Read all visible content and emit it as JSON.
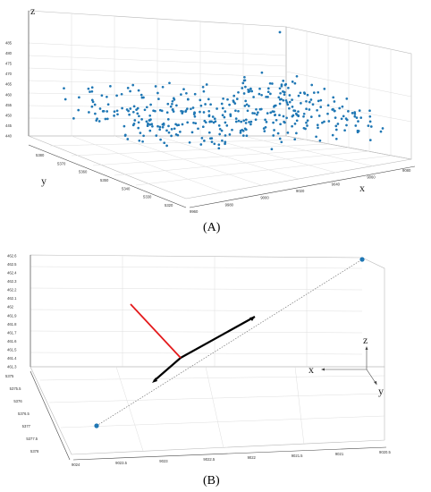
{
  "panels": {
    "a_label": "(A)",
    "b_label": "(B)"
  },
  "chart_data": [
    {
      "type": "scatter",
      "panel": "(A)",
      "xlabel": "x",
      "ylabel": "y",
      "zlabel": "z",
      "x_ticks": [
        "9960",
        "9980",
        "9000",
        "9020",
        "9040",
        "9060",
        "9080"
      ],
      "y_ticks": [
        "5320",
        "5330",
        "5340",
        "5350",
        "5360",
        "5370",
        "5380"
      ],
      "z_ticks": [
        "440",
        "445",
        "450",
        "455",
        "460",
        "465",
        "470",
        "475",
        "480",
        "485"
      ],
      "zlim": [
        440,
        485
      ],
      "marker_color": "#1f77b4",
      "grid": true,
      "point_count": 420
    },
    {
      "type": "line",
      "panel": "(B)",
      "x_ticks": [
        "9024",
        "9023.5",
        "9023",
        "9022.5",
        "9022",
        "9021.5",
        "9021",
        "9020.5"
      ],
      "y_ticks": [
        "5378",
        "5377.5",
        "5377",
        "5376.5",
        "5376",
        "5375.5",
        "5375"
      ],
      "z_ticks": [
        "461.3",
        "461.4",
        "461.5",
        "461.6",
        "461.7",
        "461.8",
        "461.9",
        "462",
        "462.1",
        "462.2",
        "462.3",
        "462.4",
        "462.5",
        "462.6"
      ],
      "triad_labels": {
        "x": "x",
        "y": "y",
        "z": "z"
      },
      "colors": {
        "normal": "#e41a1c",
        "direction": "#000000",
        "line": "#777777",
        "endpoint": "#1f77b4"
      },
      "grid": true
    }
  ]
}
